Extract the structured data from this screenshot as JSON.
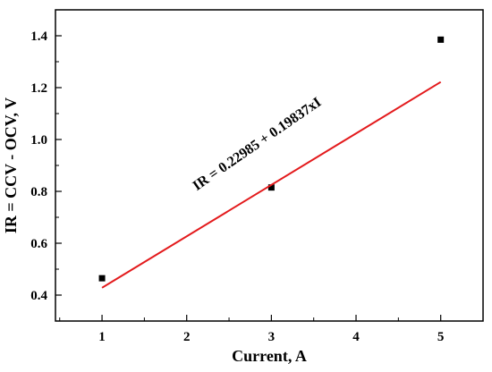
{
  "chart_data": {
    "type": "scatter",
    "xlabel": "Current, A",
    "ylabel": "IR = CCV - OCV, V",
    "xlim": [
      0.45,
      5.5
    ],
    "ylim": [
      0.3,
      1.5
    ],
    "xticks": [
      1,
      2,
      3,
      4,
      5
    ],
    "xtick_labels": [
      "1",
      "2",
      "3",
      "4",
      "5"
    ],
    "yticks": [
      0.4,
      0.6,
      0.8,
      1.0,
      1.2,
      1.4
    ],
    "ytick_labels": [
      "0.4",
      "0.6",
      "0.8",
      "1.0",
      "1.2",
      "1.4"
    ],
    "grid": false,
    "series": [
      {
        "kind": "scatter",
        "marker": "square",
        "color": "#000000",
        "x": [
          1,
          3,
          5
        ],
        "y": [
          0.465,
          0.815,
          1.385
        ]
      },
      {
        "kind": "line",
        "color": "#e31a1c",
        "x": [
          1,
          5
        ],
        "y": [
          0.42822,
          1.2217
        ]
      }
    ],
    "annotation": "IR = 0.22985 + 0.19837xI",
    "fit": {
      "intercept": 0.22985,
      "slope": 0.19837
    }
  }
}
